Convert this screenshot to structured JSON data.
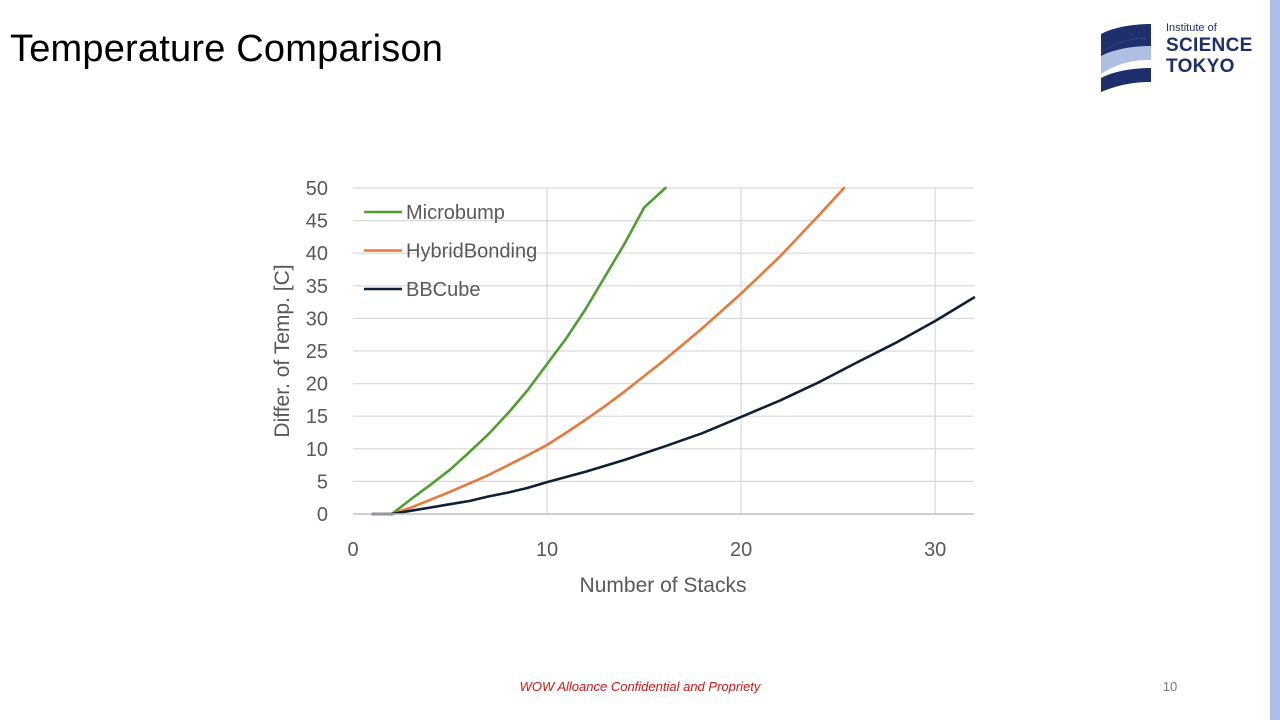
{
  "slide": {
    "title": "Temperature Comparison",
    "footer": "WOW Alloance Confidential and Propriety",
    "page_number": "10"
  },
  "logo": {
    "line1": "Institute of",
    "line2": "SCIENCE",
    "line3": "TOKYO",
    "color": "#1f2f6b",
    "accent": "#aebfe3"
  },
  "chart_data": {
    "type": "line",
    "title": "",
    "xlabel": "Number of Stacks",
    "ylabel": "Differ. of Temp. [C]",
    "xlim": [
      0,
      32
    ],
    "ylim": [
      0,
      50
    ],
    "x_ticks": [
      0,
      10,
      20,
      30
    ],
    "y_ticks": [
      0,
      5,
      10,
      15,
      20,
      25,
      30,
      35,
      40,
      45,
      50
    ],
    "grid": true,
    "legend_position": "top-left",
    "series": [
      {
        "name": "Microbump",
        "color": "#4f9e2e",
        "points": [
          [
            2,
            0
          ],
          [
            3,
            2.3
          ],
          [
            4,
            4.5
          ],
          [
            5,
            6.8
          ],
          [
            6,
            9.5
          ],
          [
            7,
            12.3
          ],
          [
            8,
            15.5
          ],
          [
            9,
            19
          ],
          [
            10,
            23
          ],
          [
            11,
            27
          ],
          [
            12,
            31.5
          ],
          [
            13,
            36.5
          ],
          [
            14,
            41.5
          ],
          [
            15,
            47
          ],
          [
            16.1,
            50
          ]
        ]
      },
      {
        "name": "HybridBonding",
        "color": "#e8793a",
        "points": [
          [
            2,
            0
          ],
          [
            3,
            1
          ],
          [
            4,
            2.2
          ],
          [
            5,
            3.4
          ],
          [
            6,
            4.7
          ],
          [
            7,
            6
          ],
          [
            8,
            7.5
          ],
          [
            9,
            9
          ],
          [
            10,
            10.6
          ],
          [
            11,
            12.5
          ],
          [
            12,
            14.5
          ],
          [
            13,
            16.6
          ],
          [
            14,
            18.8
          ],
          [
            16,
            23.5
          ],
          [
            18,
            28.5
          ],
          [
            20,
            33.8
          ],
          [
            22,
            39.5
          ],
          [
            24,
            45.8
          ],
          [
            25.3,
            50
          ]
        ]
      },
      {
        "name": "BBCube",
        "color": "#0e2036",
        "points": [
          [
            1,
            0
          ],
          [
            2,
            0
          ],
          [
            3,
            0.5
          ],
          [
            4,
            1
          ],
          [
            5,
            1.5
          ],
          [
            6,
            2
          ],
          [
            7,
            2.7
          ],
          [
            8,
            3.3
          ],
          [
            9,
            4
          ],
          [
            10,
            4.9
          ],
          [
            12,
            6.5
          ],
          [
            14,
            8.3
          ],
          [
            16,
            10.3
          ],
          [
            18,
            12.4
          ],
          [
            20,
            14.9
          ],
          [
            22,
            17.4
          ],
          [
            24,
            20.2
          ],
          [
            26,
            23.3
          ],
          [
            28,
            26.3
          ],
          [
            30,
            29.6
          ],
          [
            32,
            33.2
          ]
        ]
      }
    ]
  }
}
